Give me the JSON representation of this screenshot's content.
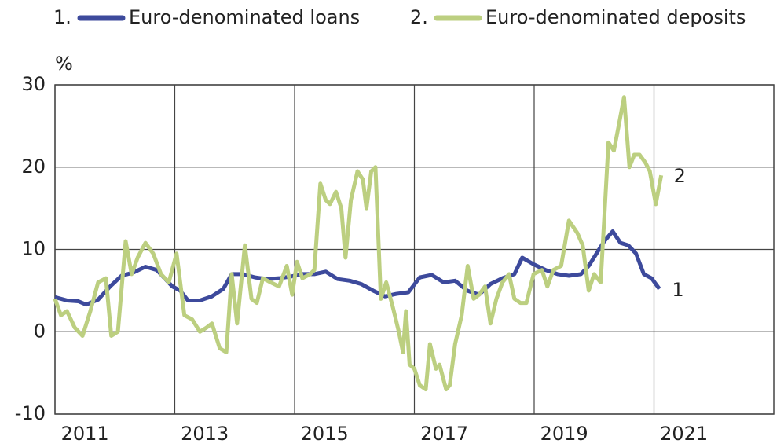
{
  "chart_data": {
    "type": "line",
    "y_unit": "%",
    "xlim": [
      2011,
      2023
    ],
    "xticks": [
      2011,
      2013,
      2015,
      2017,
      2019,
      2021
    ],
    "ylim": [
      -10,
      30
    ],
    "yticks": [
      -10,
      0,
      10,
      20,
      30
    ],
    "grid": true,
    "legend": "top",
    "series": [
      {
        "name": "Euro-denominated loans",
        "number": "1.",
        "end_label": "1",
        "color": "#3d4a9c",
        "x": [
          2011.0,
          2011.2,
          2011.39,
          2011.52,
          2011.72,
          2011.92,
          2012.11,
          2012.31,
          2012.51,
          2012.7,
          2012.83,
          2012.96,
          2013.09,
          2013.22,
          2013.42,
          2013.62,
          2013.81,
          2013.95,
          2014.14,
          2014.34,
          2014.54,
          2014.74,
          2014.93,
          2015.13,
          2015.33,
          2015.52,
          2015.72,
          2015.92,
          2016.11,
          2016.31,
          2016.51,
          2016.7,
          2016.9,
          2017.09,
          2017.29,
          2017.49,
          2017.68,
          2017.88,
          2018.08,
          2018.27,
          2018.47,
          2018.67,
          2018.8,
          2018.99,
          2019.19,
          2019.39,
          2019.58,
          2019.78,
          2019.91,
          2020.04,
          2020.17,
          2020.31,
          2020.44,
          2020.57,
          2020.7,
          2020.83,
          2020.96,
          2021.09
        ],
        "values": [
          4.2,
          3.8,
          3.7,
          3.3,
          3.9,
          5.5,
          6.8,
          7.2,
          7.9,
          7.5,
          6.5,
          5.5,
          5.0,
          3.8,
          3.8,
          4.3,
          5.2,
          7.0,
          7.0,
          6.6,
          6.4,
          6.5,
          6.7,
          7.0,
          7.0,
          7.3,
          6.4,
          6.2,
          5.8,
          5.0,
          4.3,
          4.6,
          4.8,
          6.6,
          6.9,
          6.0,
          6.2,
          5.0,
          4.5,
          5.8,
          6.5,
          7.0,
          9.0,
          8.2,
          7.5,
          7.0,
          6.8,
          7.0,
          8.0,
          9.5,
          11.0,
          12.2,
          10.8,
          10.5,
          9.5,
          7.0,
          6.5,
          5.2
        ]
      },
      {
        "name": "Euro-denominated deposits",
        "number": "2.",
        "end_label": "2",
        "color": "#bccf80",
        "x": [
          2011.0,
          2011.1,
          2011.2,
          2011.33,
          2011.46,
          2011.59,
          2011.72,
          2011.85,
          2011.94,
          2012.05,
          2012.18,
          2012.28,
          2012.38,
          2012.51,
          2012.64,
          2012.77,
          2012.9,
          2013.03,
          2013.16,
          2013.29,
          2013.42,
          2013.53,
          2013.62,
          2013.75,
          2013.86,
          2013.95,
          2014.04,
          2014.17,
          2014.28,
          2014.37,
          2014.47,
          2014.6,
          2014.74,
          2014.87,
          2014.96,
          2015.04,
          2015.13,
          2015.26,
          2015.33,
          2015.43,
          2015.52,
          2015.59,
          2015.69,
          2015.78,
          2015.85,
          2015.94,
          2016.05,
          2016.14,
          2016.2,
          2016.28,
          2016.35,
          2016.44,
          2016.53,
          2016.64,
          2016.74,
          2016.81,
          2016.86,
          2016.92,
          2017.0,
          2017.09,
          2017.19,
          2017.26,
          2017.36,
          2017.42,
          2017.53,
          2017.59,
          2017.68,
          2017.79,
          2017.89,
          2017.99,
          2018.08,
          2018.18,
          2018.27,
          2018.37,
          2018.47,
          2018.58,
          2018.67,
          2018.77,
          2018.87,
          2018.99,
          2019.13,
          2019.22,
          2019.32,
          2019.45,
          2019.58,
          2019.72,
          2019.81,
          2019.91,
          2020.0,
          2020.11,
          2020.24,
          2020.33,
          2020.41,
          2020.5,
          2020.59,
          2020.67,
          2020.76,
          2020.86,
          2020.93,
          2021.03,
          2021.12
        ],
        "values": [
          4.0,
          2.0,
          2.5,
          0.5,
          -0.5,
          2.5,
          6.0,
          6.5,
          -0.5,
          0.0,
          11.0,
          7.0,
          9.0,
          10.8,
          9.5,
          7.0,
          6.0,
          9.5,
          2.0,
          1.5,
          0.0,
          0.5,
          1.0,
          -2.0,
          -2.5,
          7.0,
          1.0,
          10.5,
          4.0,
          3.5,
          6.5,
          6.0,
          5.5,
          8.0,
          4.5,
          8.5,
          6.5,
          7.0,
          7.5,
          18.0,
          16.0,
          15.5,
          17.0,
          15.0,
          9.0,
          16.0,
          19.5,
          18.5,
          15.0,
          19.5,
          20.0,
          4.0,
          6.0,
          3.0,
          0.0,
          -2.5,
          2.5,
          -4.0,
          -4.5,
          -6.5,
          -7.0,
          -1.5,
          -4.5,
          -4.0,
          -7.0,
          -6.5,
          -1.5,
          2.0,
          8.0,
          4.0,
          4.5,
          5.5,
          1.0,
          4.0,
          6.0,
          7.0,
          4.0,
          3.5,
          3.5,
          7.0,
          7.5,
          5.5,
          7.5,
          8.0,
          13.5,
          12.0,
          10.5,
          5.0,
          7.0,
          6.0,
          23.0,
          22.0,
          25.0,
          28.5,
          20.0,
          21.5,
          21.5,
          20.5,
          19.5,
          15.5,
          19.0
        ]
      }
    ]
  }
}
